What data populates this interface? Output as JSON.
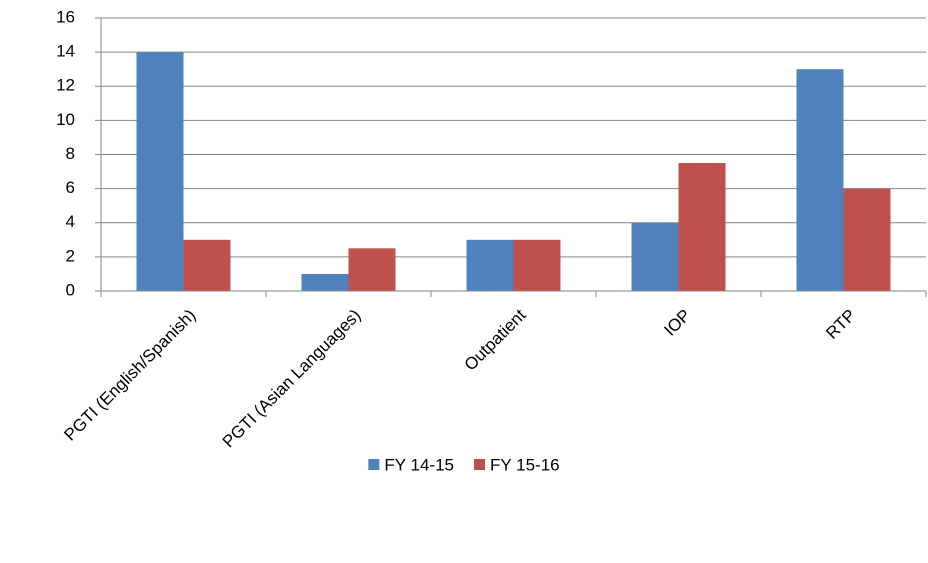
{
  "chart_data": {
    "type": "bar",
    "categories": [
      "PGTI (English/Spanish)",
      "PGTI (Asian Languages)",
      "Outpatient",
      "IOP",
      "RTP"
    ],
    "series": [
      {
        "name": "FY 14-15",
        "color": "#4f81bd",
        "values": [
          14,
          1,
          3,
          4,
          13
        ]
      },
      {
        "name": "FY 15-16",
        "color": "#c0504d",
        "values": [
          3,
          2.5,
          3,
          7.5,
          6
        ]
      }
    ],
    "ylim": [
      0,
      16
    ],
    "yticks": [
      0,
      2,
      4,
      6,
      8,
      10,
      12,
      14,
      16
    ],
    "grid": true,
    "legend": "bottom"
  }
}
